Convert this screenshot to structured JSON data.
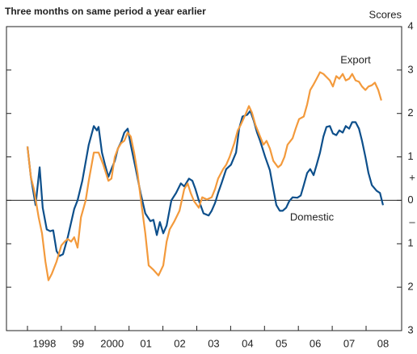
{
  "chart_data": {
    "type": "line",
    "title": "Three months on same period a year earlier",
    "y_label": "Scores",
    "annotations": [
      "Export",
      "Domestic",
      "+",
      "–"
    ],
    "xlim": [
      1997.38,
      2009.05
    ],
    "xticks": [
      1998,
      {
        "value": 1999,
        "label": "99"
      },
      2000,
      {
        "value": 2001,
        "label": "01"
      },
      {
        "value": 2002,
        "label": "02"
      },
      {
        "value": 2003,
        "label": "03"
      },
      {
        "value": 2004,
        "label": "04"
      },
      {
        "value": 2005,
        "label": "05"
      },
      {
        "value": 2006,
        "label": "06"
      },
      {
        "value": 2007,
        "label": "07"
      },
      {
        "value": 2008,
        "label": "08"
      }
    ],
    "ylim": [
      -3,
      4
    ],
    "yticks": [
      {
        "value": -3,
        "label": "3"
      },
      {
        "value": -2,
        "label": "2"
      },
      {
        "value": -1,
        "label": "1"
      },
      0,
      1,
      2,
      3,
      4
    ],
    "series": [
      {
        "name": "Domestic",
        "color": "#0d4f8b",
        "x": [
          1998.0,
          1998.1,
          1998.24,
          1998.36,
          1998.45,
          1998.57,
          1998.67,
          1998.76,
          1998.86,
          1998.95,
          1999.05,
          1999.19,
          1999.38,
          1999.48,
          1999.62,
          1999.81,
          1999.96,
          2000.05,
          2000.1,
          2000.2,
          2000.29,
          2000.39,
          2000.48,
          2000.58,
          2000.67,
          2000.77,
          2000.86,
          2000.96,
          2001.05,
          2001.2,
          2001.34,
          2001.48,
          2001.63,
          2001.72,
          2001.82,
          2001.91,
          2002.01,
          2002.11,
          2002.25,
          2002.39,
          2002.53,
          2002.63,
          2002.77,
          2002.87,
          2002.96,
          2003.06,
          2003.2,
          2003.35,
          2003.44,
          2003.54,
          2003.63,
          2003.73,
          2003.87,
          2004.01,
          2004.16,
          2004.25,
          2004.35,
          2004.49,
          2004.58,
          2004.68,
          2004.78,
          2004.87,
          2005.02,
          2005.16,
          2005.26,
          2005.35,
          2005.45,
          2005.54,
          2005.64,
          2005.73,
          2005.83,
          2005.97,
          2006.07,
          2006.16,
          2006.26,
          2006.35,
          2006.45,
          2006.54,
          2006.64,
          2006.74,
          2006.83,
          2006.93,
          2007.02,
          2007.12,
          2007.21,
          2007.31,
          2007.4,
          2007.5,
          2007.59,
          2007.69,
          2007.79,
          2007.88,
          2007.98,
          2008.07,
          2008.17,
          2008.31,
          2008.41,
          2008.5
        ],
        "values": [
          1.24,
          0.54,
          -0.11,
          0.76,
          -0.17,
          -0.67,
          -0.71,
          -0.69,
          -1.17,
          -1.28,
          -1.24,
          -0.85,
          -0.2,
          0.0,
          0.45,
          1.28,
          1.71,
          1.61,
          1.69,
          1.1,
          0.82,
          0.54,
          0.72,
          0.91,
          1.19,
          1.35,
          1.56,
          1.65,
          1.28,
          0.72,
          0.17,
          -0.3,
          -0.48,
          -0.45,
          -0.8,
          -0.5,
          -0.76,
          -0.58,
          0.0,
          0.17,
          0.39,
          0.32,
          0.5,
          0.45,
          0.26,
          0.0,
          -0.3,
          -0.35,
          -0.24,
          -0.06,
          0.17,
          0.39,
          0.72,
          0.82,
          1.1,
          1.65,
          1.93,
          1.97,
          2.06,
          1.84,
          1.56,
          1.37,
          1.0,
          0.69,
          0.26,
          -0.11,
          -0.24,
          -0.24,
          -0.17,
          -0.02,
          0.07,
          0.06,
          0.11,
          0.35,
          0.63,
          0.72,
          0.58,
          0.82,
          1.1,
          1.47,
          1.69,
          1.71,
          1.54,
          1.5,
          1.61,
          1.56,
          1.71,
          1.65,
          1.8,
          1.8,
          1.65,
          1.37,
          1.0,
          0.63,
          0.35,
          0.22,
          0.17,
          -0.11
        ]
      },
      {
        "name": "Export",
        "color": "#f39a3c",
        "x": [
          1998.0,
          1998.1,
          1998.19,
          1998.33,
          1998.43,
          1998.53,
          1998.62,
          1998.72,
          1998.86,
          1999.0,
          1999.1,
          1999.19,
          1999.29,
          1999.38,
          1999.48,
          1999.58,
          1999.72,
          1999.81,
          1999.96,
          2000.1,
          2000.24,
          2000.39,
          2000.48,
          2000.58,
          2000.67,
          2000.77,
          2000.86,
          2000.96,
          2001.05,
          2001.15,
          2001.25,
          2001.34,
          2001.48,
          2001.58,
          2001.72,
          2001.87,
          2002.01,
          2002.11,
          2002.2,
          2002.34,
          2002.49,
          2002.63,
          2002.73,
          2002.82,
          2002.92,
          2003.06,
          2003.16,
          2003.3,
          2003.44,
          2003.54,
          2003.63,
          2003.78,
          2003.87,
          2003.97,
          2004.11,
          2004.21,
          2004.3,
          2004.44,
          2004.54,
          2004.63,
          2004.73,
          2004.87,
          2004.97,
          2005.06,
          2005.16,
          2005.26,
          2005.4,
          2005.49,
          2005.59,
          2005.68,
          2005.83,
          2005.92,
          2006.02,
          2006.16,
          2006.26,
          2006.35,
          2006.45,
          2006.54,
          2006.64,
          2006.74,
          2006.83,
          2006.93,
          2007.02,
          2007.12,
          2007.21,
          2007.31,
          2007.4,
          2007.5,
          2007.59,
          2007.69,
          2007.79,
          2007.88,
          2007.98,
          2008.07,
          2008.17,
          2008.26,
          2008.36,
          2008.45
        ],
        "values": [
          1.24,
          0.54,
          0.26,
          -0.39,
          -0.76,
          -1.41,
          -1.84,
          -1.69,
          -1.41,
          -1.04,
          -0.95,
          -0.89,
          -0.95,
          -0.85,
          -1.09,
          -0.39,
          0.0,
          0.45,
          1.1,
          1.1,
          0.82,
          0.45,
          0.5,
          1.0,
          1.19,
          1.32,
          1.37,
          1.56,
          1.47,
          1.1,
          0.63,
          0.07,
          -0.76,
          -1.5,
          -1.6,
          -1.73,
          -1.5,
          -0.95,
          -0.67,
          -0.48,
          -0.24,
          0.26,
          0.39,
          0.17,
          -0.02,
          -0.17,
          0.07,
          0.02,
          0.07,
          0.26,
          0.5,
          0.72,
          0.82,
          1.0,
          1.32,
          1.61,
          1.74,
          1.98,
          2.17,
          2.02,
          1.74,
          1.47,
          1.28,
          1.37,
          1.19,
          0.91,
          0.76,
          0.82,
          1.0,
          1.28,
          1.43,
          1.65,
          1.87,
          1.93,
          2.21,
          2.54,
          2.67,
          2.8,
          2.95,
          2.91,
          2.84,
          2.76,
          2.62,
          2.86,
          2.8,
          2.91,
          2.76,
          2.8,
          2.91,
          2.76,
          2.73,
          2.62,
          2.54,
          2.62,
          2.65,
          2.71,
          2.54,
          2.3
        ]
      }
    ]
  }
}
